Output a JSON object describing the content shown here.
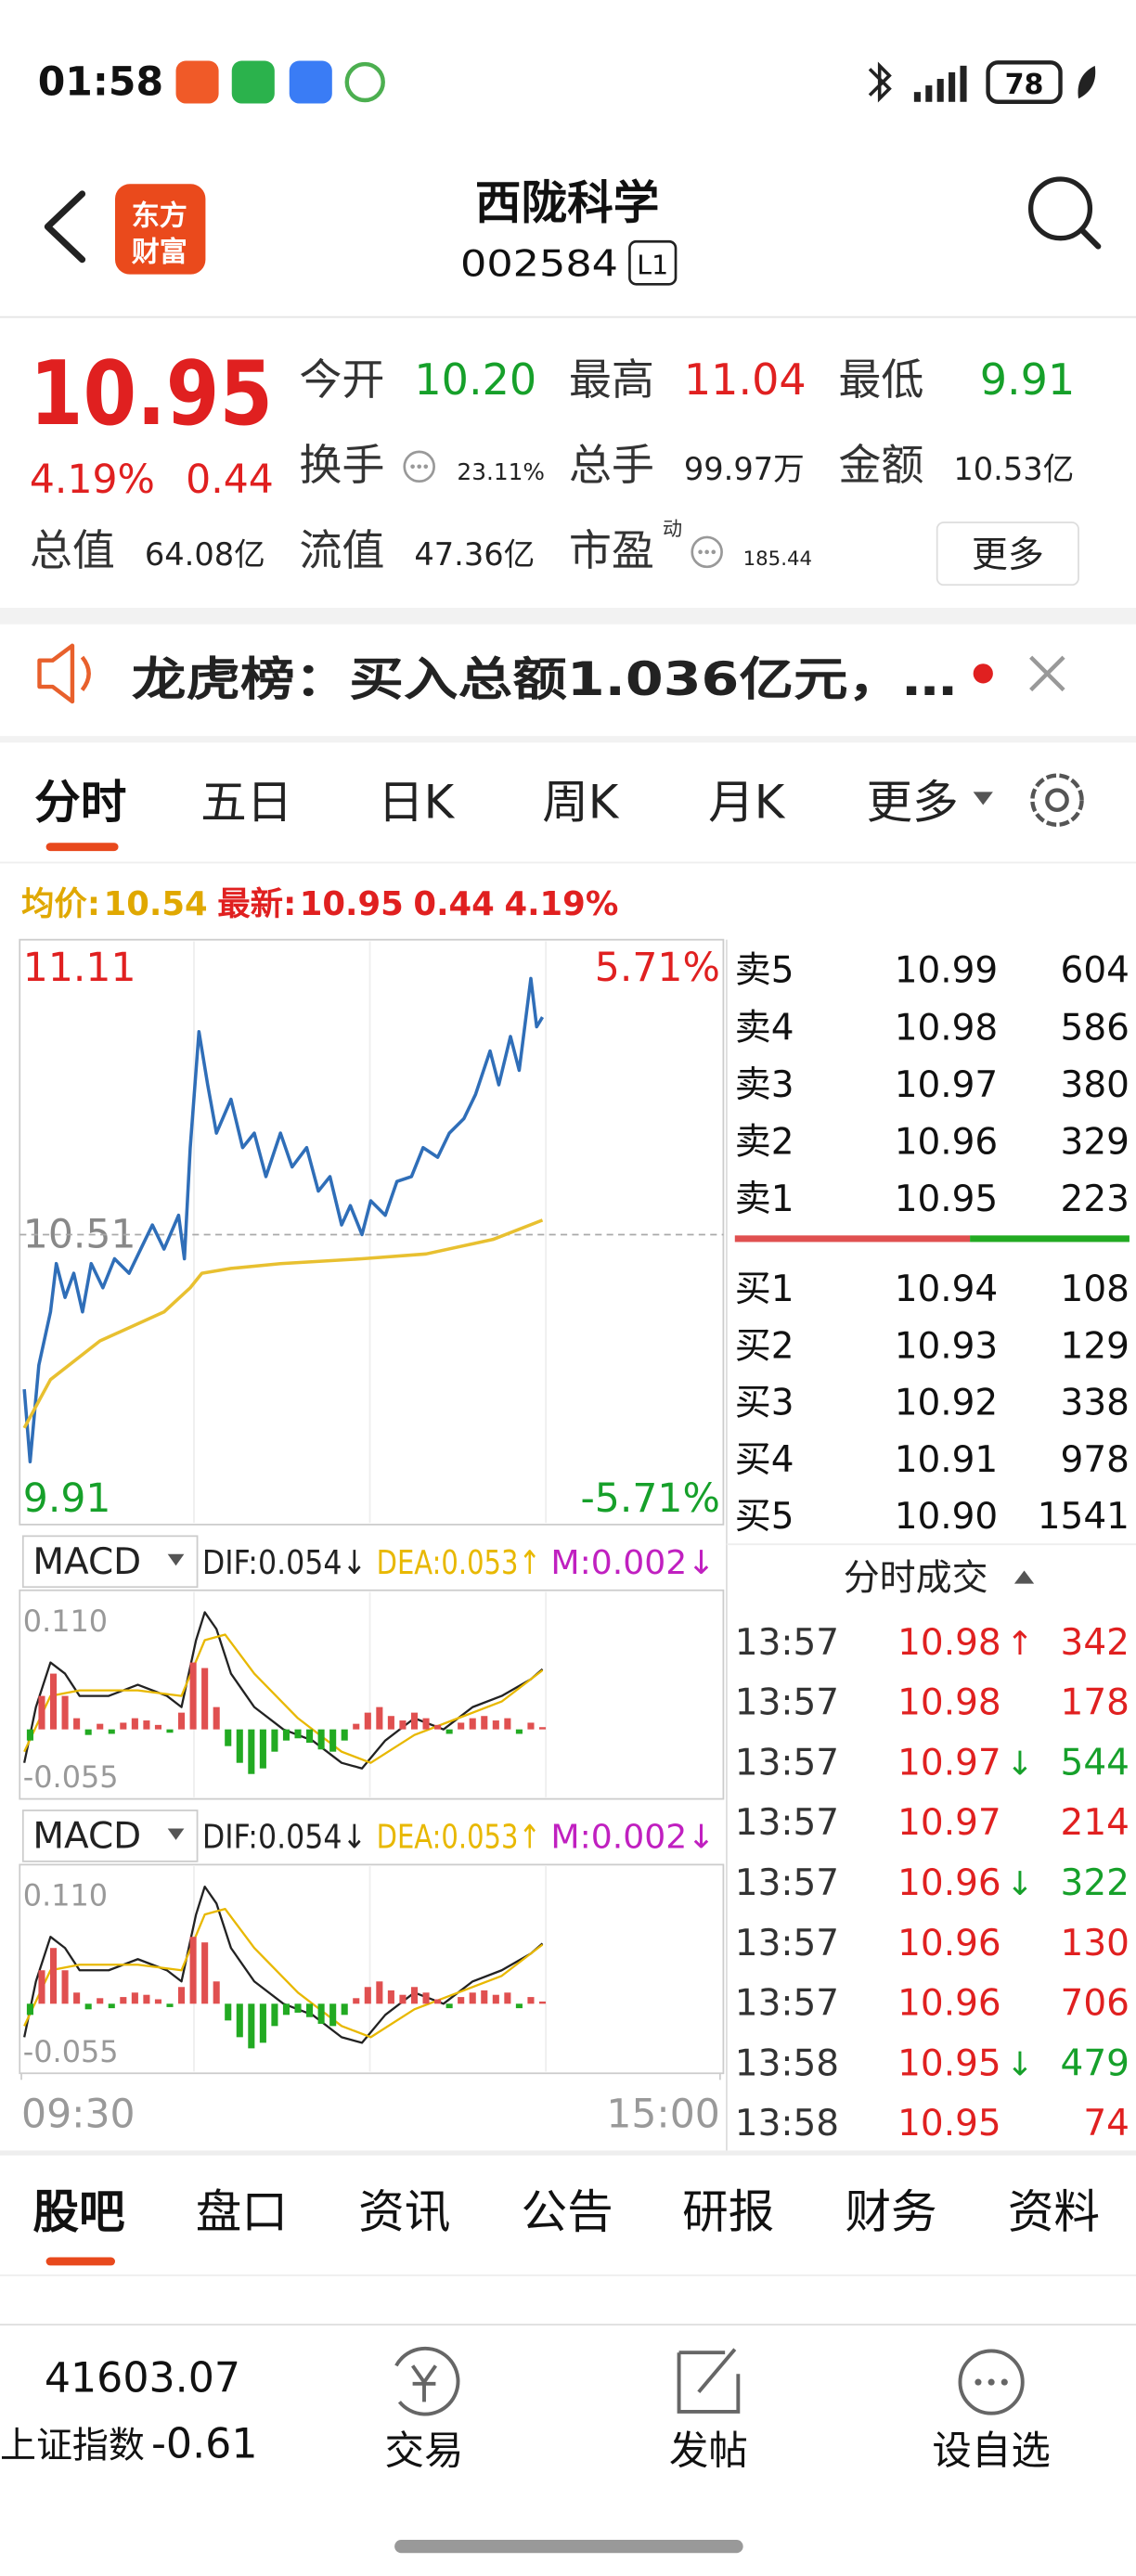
{
  "status_bar": {
    "time": "01:58",
    "battery": "78"
  },
  "header": {
    "logo": [
      "东方",
      "财富"
    ],
    "name": "西陇科学",
    "code": "002584",
    "level": "L1"
  },
  "quote": {
    "price": "10.95",
    "change_pct": "4.19%",
    "change": "0.44",
    "stats": [
      {
        "label": "今开",
        "value": "10.20"
      },
      {
        "label": "最高",
        "value": "11.04"
      },
      {
        "label": "最低",
        "value": "9.91"
      },
      {
        "label": "换手",
        "value": "23.11%"
      },
      {
        "label": "总手",
        "value": "99.97万"
      },
      {
        "label": "金额",
        "value": "10.53亿"
      },
      {
        "label": "总值",
        "value": "64.08亿"
      },
      {
        "label": "流值",
        "value": "47.36亿"
      },
      {
        "label": "市盈",
        "tag": "动",
        "value": "185.44"
      }
    ],
    "more": "更多"
  },
  "notice": "龙虎榜：买入总额1.036亿元，…",
  "tabs": [
    "分时",
    "五日",
    "日K",
    "周K",
    "月K",
    "更多"
  ],
  "summary": {
    "avg_label": "均价:",
    "avg": "10.54",
    "latest_label": "最新:",
    "latest": "10.95",
    "change": "0.44",
    "change_pct": "4.19%"
  },
  "chart_data": [
    {
      "type": "line",
      "ylim": [
        9.91,
        11.11
      ],
      "yticks": [
        9.91,
        10.51,
        11.11
      ],
      "y2lim": [
        -5.71,
        5.71
      ],
      "y2ticks": [
        {
          "value": -5.71,
          "label": "-5.71%"
        },
        {
          "value": 5.71,
          "label": "5.71%"
        }
      ],
      "xlim": [
        0,
        240
      ],
      "xticks": [
        {
          "value": 0,
          "label": "09:30"
        },
        {
          "value": 240,
          "label": "15:00"
        }
      ],
      "series": [
        {
          "color": "#2f6eb8",
          "x": [
            1,
            3,
            6,
            10,
            12,
            15,
            18,
            21,
            24,
            28,
            32,
            37,
            41,
            45,
            49,
            54,
            56,
            58,
            61,
            64,
            67,
            72,
            76,
            80,
            84,
            89,
            93,
            98,
            102,
            106,
            110,
            113,
            117,
            120,
            125,
            129,
            134,
            138,
            143,
            147,
            152,
            156,
            161,
            164,
            168,
            171,
            175,
            177,
            179
          ],
          "values": [
            10.19,
            10.04,
            10.24,
            10.35,
            10.45,
            10.38,
            10.43,
            10.35,
            10.45,
            10.4,
            10.46,
            10.43,
            10.48,
            10.53,
            10.48,
            10.55,
            10.46,
            10.69,
            10.93,
            10.82,
            10.72,
            10.79,
            10.69,
            10.72,
            10.63,
            10.72,
            10.65,
            10.69,
            10.6,
            10.63,
            10.53,
            10.57,
            10.51,
            10.58,
            10.55,
            10.62,
            10.63,
            10.69,
            10.67,
            10.72,
            10.75,
            10.8,
            10.89,
            10.82,
            10.92,
            10.85,
            11.04,
            10.94,
            10.96
          ]
        },
        {
          "color": "#e8c030",
          "x": [
            1,
            10,
            27,
            49,
            58,
            62,
            72,
            89,
            117,
            139,
            162,
            179
          ],
          "values": [
            10.11,
            10.21,
            10.29,
            10.35,
            10.4,
            10.43,
            10.44,
            10.45,
            10.46,
            10.47,
            10.5,
            10.54
          ]
        }
      ]
    },
    {
      "type": "macd",
      "title": "MACD",
      "ylim": [
        -0.055,
        0.11
      ],
      "yticks": [
        -0.055,
        {
          "value": 0.11,
          "label": "0.110"
        }
      ],
      "xlim": [
        0,
        240
      ],
      "series": [
        {
          "label": "DIF:0.054↓",
          "color": "#222222",
          "x": [
            1,
            5,
            10,
            15,
            20,
            30,
            40,
            50,
            55,
            60,
            63,
            67,
            72,
            80,
            90,
            100,
            110,
            117,
            125,
            135,
            145,
            155,
            165,
            175,
            179
          ],
          "values": [
            -0.03,
            0.02,
            0.06,
            0.05,
            0.03,
            0.03,
            0.04,
            0.03,
            0.02,
            0.08,
            0.105,
            0.09,
            0.05,
            0.02,
            0,
            -0.01,
            -0.03,
            -0.035,
            -0.01,
            0.01,
            0,
            0.02,
            0.03,
            0.045,
            0.054
          ]
        },
        {
          "label": "DEA:0.053↑",
          "color": "#e8b800",
          "x": [
            1,
            10,
            20,
            40,
            55,
            63,
            70,
            80,
            95,
            110,
            120,
            135,
            150,
            165,
            179
          ],
          "values": [
            -0.02,
            0.03,
            0.035,
            0.035,
            0.03,
            0.08,
            0.085,
            0.05,
            0.01,
            -0.02,
            -0.03,
            -0.005,
            0.01,
            0.025,
            0.053
          ]
        },
        {
          "label": "M:0.002↓",
          "type": "bar",
          "color": "#c020c0",
          "bar_colors": [
            "#e05050",
            "#22aa22"
          ],
          "x": [
            3,
            7,
            11,
            15,
            19,
            23,
            27,
            31,
            35,
            39,
            43,
            47,
            51,
            55,
            59,
            63,
            67,
            71,
            75,
            79,
            83,
            87,
            91,
            95,
            99,
            103,
            107,
            111,
            115,
            119,
            123,
            127,
            131,
            135,
            139,
            143,
            147,
            151,
            155,
            159,
            163,
            167,
            171,
            175,
            179
          ],
          "values": [
            -0.01,
            0.03,
            0.05,
            0.03,
            0.01,
            -0.005,
            0.005,
            -0.004,
            0.006,
            0.01,
            0.008,
            0.004,
            -0.003,
            0.015,
            0.06,
            0.055,
            0.02,
            -0.015,
            -0.03,
            -0.04,
            -0.035,
            -0.02,
            -0.01,
            -0.008,
            -0.012,
            -0.018,
            -0.02,
            -0.01,
            0.005,
            0.015,
            0.02,
            0.012,
            0.008,
            0.015,
            0.01,
            0.004,
            -0.004,
            0.006,
            0.01,
            0.012,
            0.008,
            0.01,
            -0.004,
            0.006,
            0.002
          ]
        }
      ]
    },
    {
      "type": "macd",
      "title": "MACD",
      "ylim": [
        -0.055,
        0.11
      ],
      "yticks": [
        -0.055,
        {
          "value": 0.11,
          "label": "0.110"
        }
      ],
      "xlim": [
        0,
        240
      ],
      "series": [
        {
          "label": "DIF:0.054↓",
          "color": "#222222",
          "x": [
            1,
            5,
            10,
            15,
            20,
            30,
            40,
            50,
            55,
            60,
            63,
            67,
            72,
            80,
            90,
            100,
            110,
            117,
            125,
            135,
            145,
            155,
            165,
            175,
            179
          ],
          "values": [
            -0.03,
            0.02,
            0.06,
            0.05,
            0.03,
            0.03,
            0.04,
            0.03,
            0.02,
            0.08,
            0.105,
            0.09,
            0.05,
            0.02,
            0,
            -0.01,
            -0.03,
            -0.035,
            -0.01,
            0.01,
            0,
            0.02,
            0.03,
            0.045,
            0.054
          ]
        },
        {
          "label": "DEA:0.053↑",
          "color": "#e8b800",
          "x": [
            1,
            10,
            20,
            40,
            55,
            63,
            70,
            80,
            95,
            110,
            120,
            135,
            150,
            165,
            179
          ],
          "values": [
            -0.02,
            0.03,
            0.035,
            0.035,
            0.03,
            0.08,
            0.085,
            0.05,
            0.01,
            -0.02,
            -0.03,
            -0.005,
            0.01,
            0.025,
            0.053
          ]
        },
        {
          "label": "M:0.002↓",
          "type": "bar",
          "color": "#c020c0",
          "bar_colors": [
            "#e05050",
            "#22aa22"
          ],
          "x": [
            3,
            7,
            11,
            15,
            19,
            23,
            27,
            31,
            35,
            39,
            43,
            47,
            51,
            55,
            59,
            63,
            67,
            71,
            75,
            79,
            83,
            87,
            91,
            95,
            99,
            103,
            107,
            111,
            115,
            119,
            123,
            127,
            131,
            135,
            139,
            143,
            147,
            151,
            155,
            159,
            163,
            167,
            171,
            175,
            179
          ],
          "values": [
            -0.01,
            0.03,
            0.05,
            0.03,
            0.01,
            -0.005,
            0.005,
            -0.004,
            0.006,
            0.01,
            0.008,
            0.004,
            -0.003,
            0.015,
            0.06,
            0.055,
            0.02,
            -0.015,
            -0.03,
            -0.04,
            -0.035,
            -0.02,
            -0.01,
            -0.008,
            -0.012,
            -0.018,
            -0.02,
            -0.01,
            0.005,
            0.015,
            0.02,
            0.012,
            0.008,
            0.015,
            0.01,
            0.004,
            -0.004,
            0.006,
            0.01,
            0.012,
            0.008,
            0.01,
            -0.004,
            0.006,
            0.002
          ]
        }
      ]
    }
  ],
  "order_book": {
    "asks": [
      [
        "卖5",
        "10.99",
        "604"
      ],
      [
        "卖4",
        "10.98",
        "586"
      ],
      [
        "卖3",
        "10.97",
        "380"
      ],
      [
        "卖2",
        "10.96",
        "329"
      ],
      [
        "卖1",
        "10.95",
        "223"
      ]
    ],
    "bids": [
      [
        "买1",
        "10.94",
        "108"
      ],
      [
        "买2",
        "10.93",
        "129"
      ],
      [
        "买3",
        "10.92",
        "338"
      ],
      [
        "买4",
        "10.91",
        "978"
      ],
      [
        "买5",
        "10.90",
        "1541"
      ]
    ]
  },
  "trades": {
    "title": "分时成交",
    "rows": [
      {
        "time": "13:57",
        "price": "10.98",
        "arrow": "↑",
        "volume": "342",
        "color": "#e02020"
      },
      {
        "time": "13:57",
        "price": "10.98",
        "volume": "178",
        "color": "#e02020"
      },
      {
        "time": "13:57",
        "price": "10.97",
        "arrow": "↓",
        "volume": "544",
        "color": "#16a02a"
      },
      {
        "time": "13:57",
        "price": "10.97",
        "volume": "214",
        "color": "#e02020"
      },
      {
        "time": "13:57",
        "price": "10.96",
        "arrow": "↓",
        "volume": "322",
        "color": "#16a02a"
      },
      {
        "time": "13:57",
        "price": "10.96",
        "volume": "130",
        "color": "#e02020"
      },
      {
        "time": "13:57",
        "price": "10.96",
        "volume": "706",
        "color": "#e02020"
      },
      {
        "time": "13:58",
        "price": "10.95",
        "arrow": "↓",
        "volume": "479",
        "color": "#16a02a"
      },
      {
        "time": "13:58",
        "price": "10.95",
        "volume": "74",
        "color": "#e02020"
      }
    ]
  },
  "bottom_tabs": [
    "股吧",
    "盘口",
    "资讯",
    "公告",
    "研报",
    "财务",
    "资料"
  ],
  "bottom_bar": {
    "index_value": "41603.07",
    "index_name": "上证指数",
    "index_change": "-0.61",
    "actions": [
      "交易",
      "发帖",
      "设自选"
    ]
  }
}
